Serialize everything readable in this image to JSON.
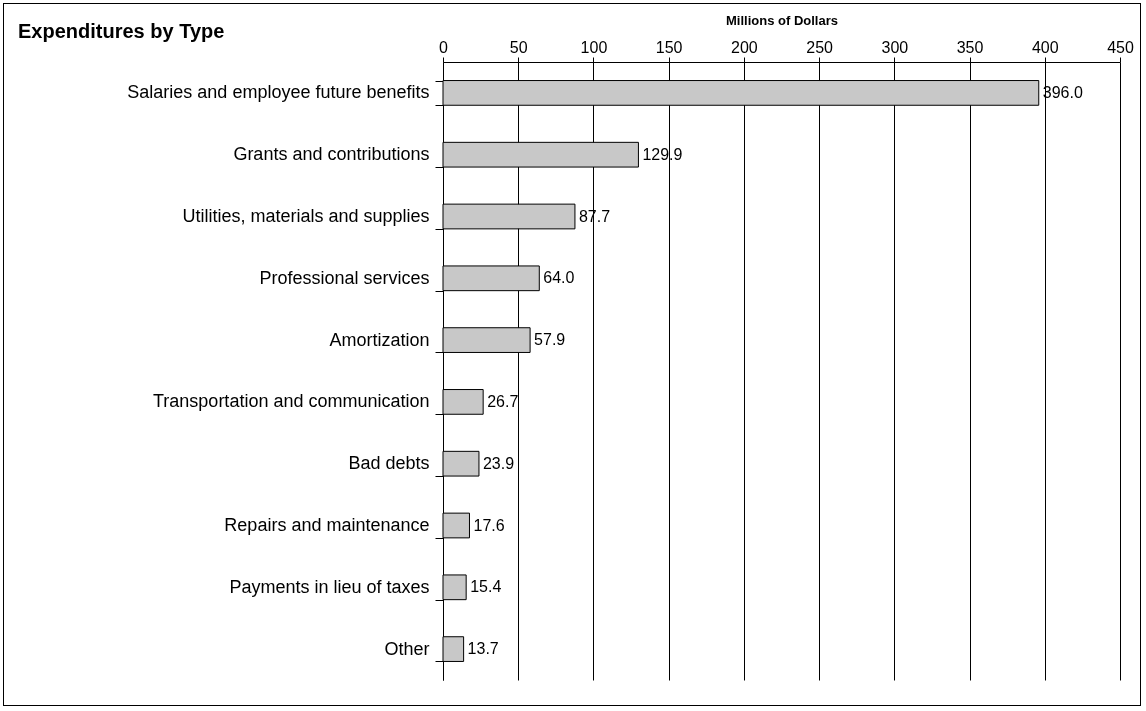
{
  "chart_data": {
    "type": "bar",
    "orientation": "horizontal",
    "title": "Expenditures by Type",
    "xlabel": "Millions of Dollars",
    "categories": [
      "Salaries and employee future benefits",
      "Grants and contributions",
      "Utilities, materials and supplies",
      "Professional services",
      "Amortization",
      "Transportation and communication",
      "Bad debts",
      "Repairs and maintenance",
      "Payments in lieu of taxes",
      "Other"
    ],
    "values": [
      396.0,
      129.9,
      87.7,
      64.0,
      57.9,
      26.7,
      23.9,
      17.6,
      15.4,
      13.7
    ],
    "value_labels": [
      "396.0",
      "129.9",
      "87.7",
      "64.0",
      "57.9",
      "26.7",
      "23.9",
      "17.6",
      "15.4",
      "13.7"
    ],
    "color": "#c8c8c8",
    "xlim": [
      0,
      450
    ],
    "xticks": [
      0,
      50,
      100,
      150,
      200,
      250,
      300,
      350,
      400,
      450
    ],
    "grid": "x"
  }
}
